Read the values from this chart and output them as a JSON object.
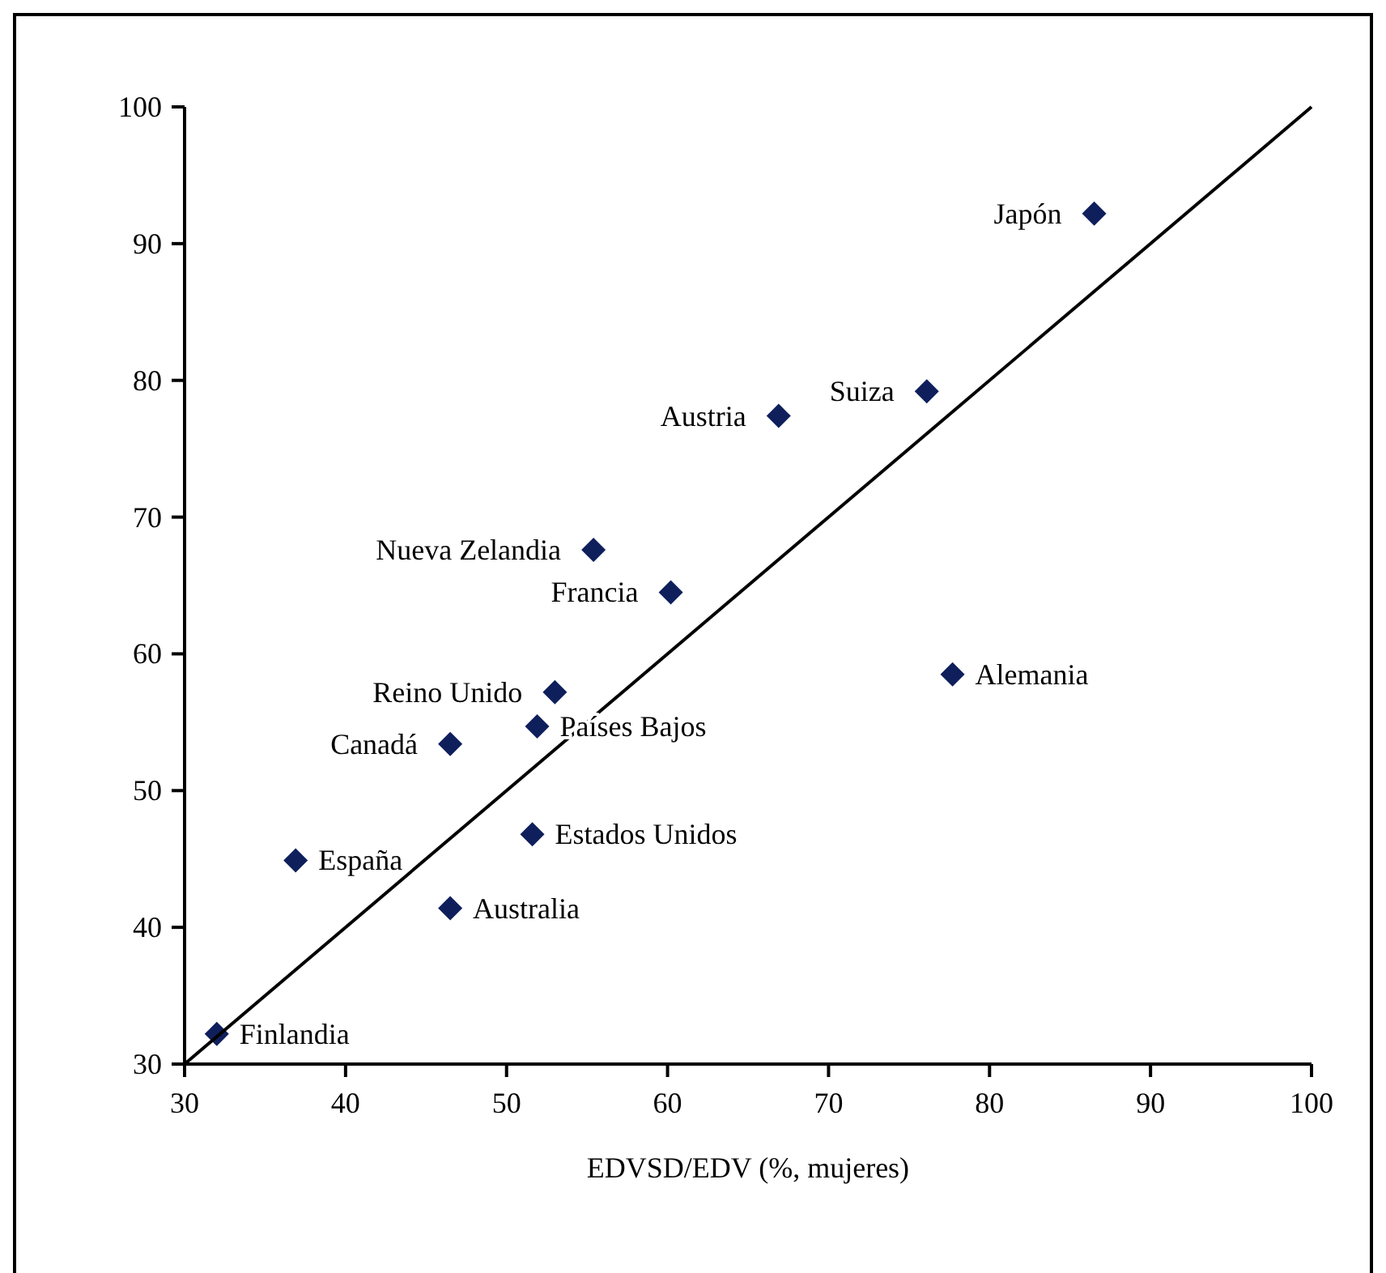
{
  "chart_data": {
    "type": "scatter",
    "xlabel": "EDVSD/EDV (%, mujeres)",
    "xlim": [
      30,
      100
    ],
    "ylim": [
      30,
      100
    ],
    "xticks": [
      30,
      40,
      50,
      60,
      70,
      80,
      90,
      100
    ],
    "yticks": [
      30,
      40,
      50,
      60,
      70,
      80,
      90,
      100
    ],
    "grid": false,
    "series": [
      {
        "type": "scatter",
        "color": "#0f1f5c",
        "marker": "diamond",
        "x": [
          86.5,
          76.1,
          66.9,
          55.4,
          60.2,
          77.7,
          53.0,
          51.9,
          46.5,
          51.6,
          36.9,
          46.5,
          32.0
        ],
        "values": [
          92.2,
          79.2,
          77.4,
          67.6,
          64.5,
          58.5,
          57.2,
          54.7,
          53.4,
          46.8,
          44.9,
          41.4,
          32.2
        ]
      },
      {
        "type": "line",
        "color": "#000000",
        "marker": "none",
        "line_style": "solid",
        "x": [
          30,
          100
        ],
        "values": [
          30,
          100
        ]
      }
    ],
    "annotations": [
      {
        "text": "Japón",
        "x": 86.5,
        "y": 92.2
      },
      {
        "text": "Suiza",
        "x": 76.1,
        "y": 79.2
      },
      {
        "text": "Austria",
        "x": 66.9,
        "y": 77.4
      },
      {
        "text": "Nueva Zelandia",
        "x": 55.4,
        "y": 67.6
      },
      {
        "text": "Francia",
        "x": 60.2,
        "y": 64.5
      },
      {
        "text": "Alemania",
        "x": 77.7,
        "y": 58.5
      },
      {
        "text": "Reino Unido",
        "x": 53.0,
        "y": 57.2
      },
      {
        "text": "Países Bajos",
        "x": 51.9,
        "y": 54.7
      },
      {
        "text": "Canadá",
        "x": 46.5,
        "y": 53.4
      },
      {
        "text": "Estados Unidos",
        "x": 51.6,
        "y": 46.8
      },
      {
        "text": "España",
        "x": 36.9,
        "y": 44.9
      },
      {
        "text": "Australia",
        "x": 46.5,
        "y": 41.4
      },
      {
        "text": "Finlandia",
        "x": 32.0,
        "y": 32.2
      }
    ]
  }
}
